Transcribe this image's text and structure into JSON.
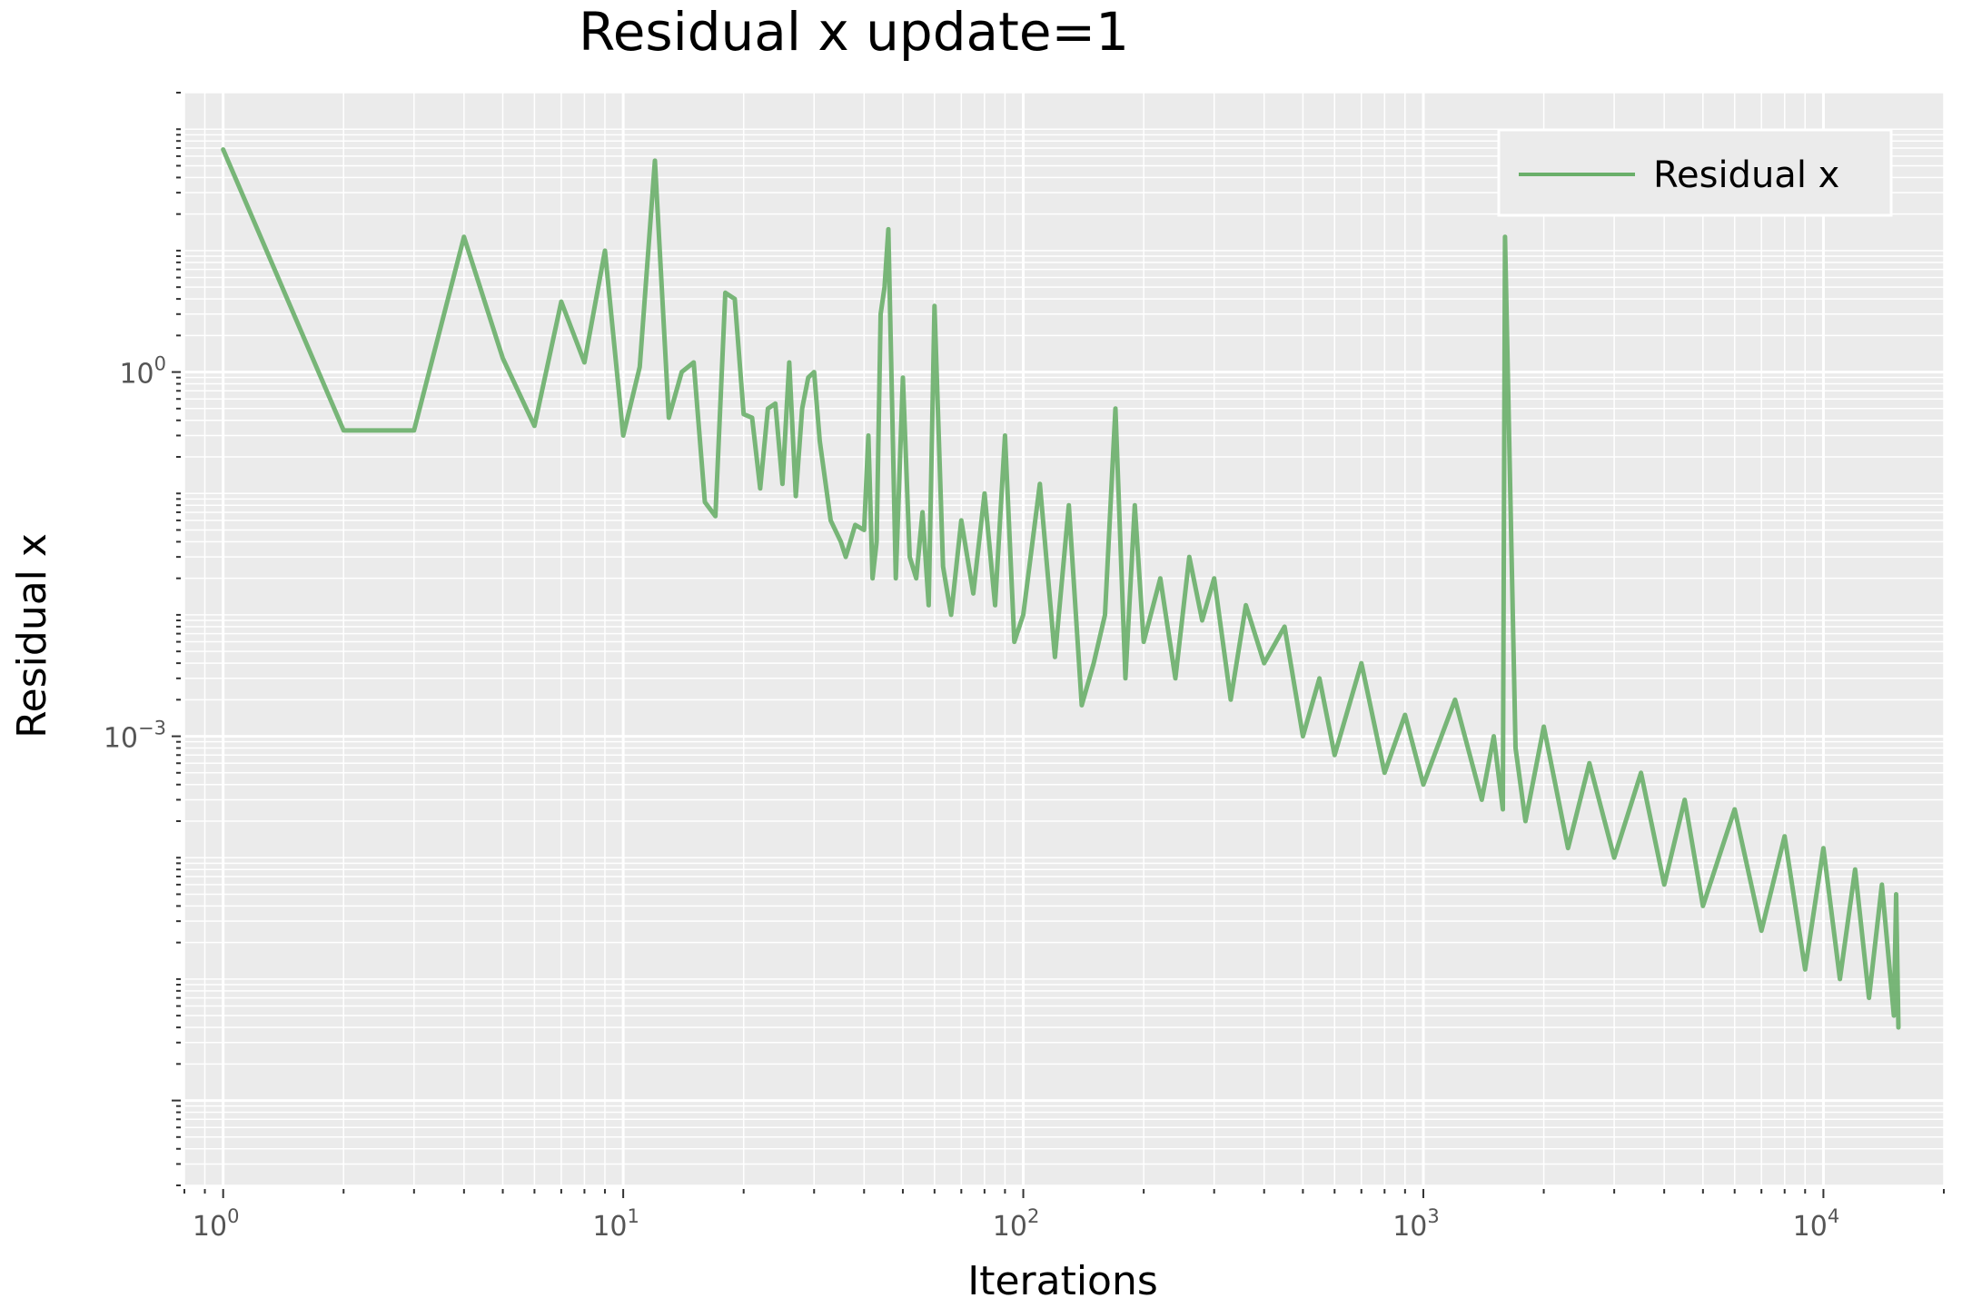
{
  "chart_data": {
    "type": "line",
    "title": "Residual x update=1",
    "xlabel": "Iterations",
    "ylabel": "Residual x",
    "xscale": "log",
    "yscale": "log",
    "xlim": [
      0.8,
      20000
    ],
    "ylim": [
      2e-07,
      200
    ],
    "x_ticks": [
      {
        "base": "10",
        "exp": "0",
        "value": 1
      },
      {
        "base": "10",
        "exp": "1",
        "value": 10
      },
      {
        "base": "10",
        "exp": "2",
        "value": 100
      },
      {
        "base": "10",
        "exp": "3",
        "value": 1000
      },
      {
        "base": "10",
        "exp": "4",
        "value": 10000
      }
    ],
    "y_ticks": [
      {
        "base": "10",
        "exp": "0",
        "value": 1
      },
      {
        "base": "10",
        "exp": "−3",
        "value": 0.001
      }
    ],
    "grid": true,
    "legend": {
      "position": "upper right"
    },
    "series": [
      {
        "name": "Residual x",
        "color": "#6aaf6a",
        "x": [
          1,
          2,
          3,
          4,
          5,
          6,
          7,
          8,
          9,
          10,
          11,
          12,
          13,
          14,
          15,
          16,
          17,
          18,
          19,
          20,
          21,
          22,
          23,
          24,
          25,
          26,
          27,
          28,
          29,
          30,
          31,
          33,
          35,
          36,
          38,
          40,
          41,
          42,
          43,
          44,
          45,
          46,
          48,
          50,
          52,
          54,
          56,
          58,
          60,
          63,
          66,
          70,
          75,
          80,
          85,
          90,
          95,
          100,
          110,
          120,
          130,
          140,
          150,
          160,
          170,
          180,
          190,
          200,
          220,
          240,
          260,
          280,
          300,
          330,
          360,
          400,
          450,
          500,
          550,
          600,
          700,
          800,
          900,
          1000,
          1200,
          1400,
          1500,
          1580,
          1600,
          1700,
          1800,
          2000,
          2300,
          2600,
          3000,
          3500,
          4000,
          4500,
          5000,
          6000,
          7000,
          8000,
          9000,
          10000,
          11000,
          12000,
          13000,
          14000,
          15000,
          15200,
          15400
        ],
        "y": [
          68,
          0.33,
          0.33,
          13,
          1.3,
          0.36,
          3.8,
          1.2,
          10,
          0.3,
          1.1,
          55,
          0.42,
          1,
          1.2,
          0.085,
          0.065,
          4.5,
          4,
          0.45,
          0.42,
          0.11,
          0.5,
          0.55,
          0.12,
          1.2,
          0.095,
          0.5,
          0.9,
          1,
          0.27,
          0.06,
          0.04,
          0.03,
          0.055,
          0.05,
          0.3,
          0.02,
          0.04,
          3,
          5,
          15,
          0.02,
          0.9,
          0.03,
          0.02,
          0.07,
          0.012,
          3.5,
          0.025,
          0.01,
          0.06,
          0.015,
          0.1,
          0.012,
          0.3,
          0.006,
          0.01,
          0.12,
          0.0045,
          0.08,
          0.0018,
          0.004,
          0.01,
          0.5,
          0.003,
          0.08,
          0.006,
          0.02,
          0.003,
          0.03,
          0.009,
          0.02,
          0.002,
          0.012,
          0.004,
          0.008,
          0.001,
          0.003,
          0.0007,
          0.004,
          0.0005,
          0.0015,
          0.0004,
          0.002,
          0.0003,
          0.001,
          0.00025,
          13,
          0.0008,
          0.0002,
          0.0012,
          0.00012,
          0.0006,
          0.0001,
          0.0005,
          6e-05,
          0.0003,
          4e-05,
          0.00025,
          2.5e-05,
          0.00015,
          1.2e-05,
          0.00012,
          1e-05,
          8e-05,
          7e-06,
          6e-05,
          5e-06,
          5e-05,
          4e-06
        ]
      }
    ]
  }
}
